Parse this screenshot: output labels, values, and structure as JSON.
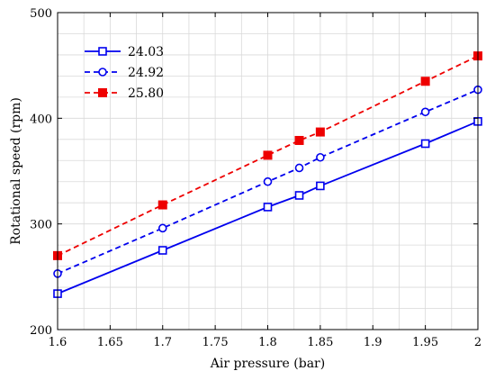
{
  "chart_data": {
    "type": "line",
    "xlabel": "Air pressure (bar)",
    "ylabel": "Rotational speed (rpm)",
    "xlim": [
      1.6,
      2.0
    ],
    "ylim": [
      200,
      500
    ],
    "x_ticks": [
      1.6,
      1.65,
      1.7,
      1.75,
      1.8,
      1.85,
      1.9,
      1.95,
      2.0
    ],
    "x_tick_labels": [
      "1.6",
      "1.65",
      "1.7",
      "1.75",
      "1.8",
      "1.85",
      "1.9",
      "1.95",
      "2"
    ],
    "y_ticks": [
      200,
      300,
      400,
      500
    ],
    "y_tick_labels": [
      "200",
      "300",
      "400",
      "500"
    ],
    "grid": true,
    "legend_position": "top-left",
    "series": [
      {
        "name": "24.03",
        "color": "#0000ee",
        "line_style": "solid",
        "marker": "open-square",
        "x": [
          1.6,
          1.7,
          1.8,
          1.83,
          1.85,
          1.95,
          2.0
        ],
        "y": [
          234,
          275,
          316,
          327,
          336,
          376,
          397
        ]
      },
      {
        "name": "24.92",
        "color": "#0000ee",
        "line_style": "dashed",
        "marker": "open-circle",
        "x": [
          1.6,
          1.7,
          1.8,
          1.83,
          1.85,
          1.95,
          2.0
        ],
        "y": [
          253,
          296,
          340,
          353,
          363,
          406,
          427
        ]
      },
      {
        "name": "25.80",
        "color": "#ee0000",
        "line_style": "dashed",
        "marker": "filled-square",
        "x": [
          1.6,
          1.7,
          1.8,
          1.83,
          1.85,
          1.95,
          2.0
        ],
        "y": [
          270,
          318,
          365,
          379,
          387,
          435,
          459
        ]
      }
    ]
  }
}
